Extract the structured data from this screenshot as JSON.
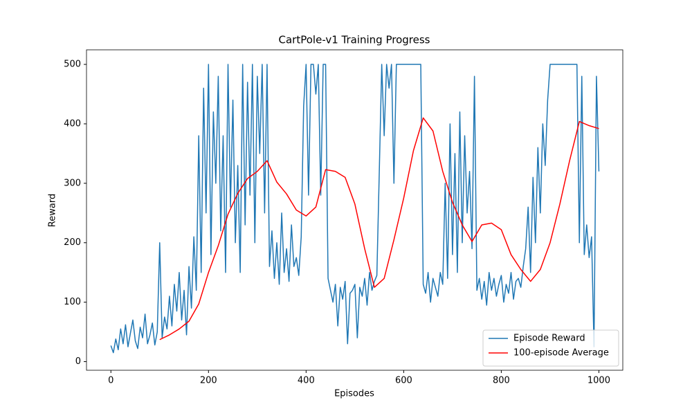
{
  "chart_data": {
    "type": "line",
    "title": "CartPole-v1 Training Progress",
    "x_label": "Episodes",
    "y_label": "Reward",
    "xlim": [
      -50,
      1049
    ],
    "ylim": [
      -14.5,
      524.5
    ],
    "xticks": [
      0,
      200,
      400,
      600,
      800,
      1000
    ],
    "yticks": [
      0,
      100,
      200,
      300,
      400,
      500
    ],
    "legend": "lower right",
    "series": [
      {
        "name": "Episode Reward",
        "color": "#1f77b4",
        "x": [
          0,
          5,
          10,
          15,
          20,
          25,
          30,
          35,
          40,
          45,
          50,
          55,
          60,
          65,
          70,
          75,
          80,
          85,
          90,
          95,
          100,
          105,
          110,
          115,
          120,
          125,
          130,
          135,
          140,
          145,
          150,
          155,
          160,
          165,
          170,
          175,
          180,
          185,
          190,
          195,
          200,
          205,
          210,
          215,
          220,
          225,
          230,
          235,
          240,
          245,
          250,
          255,
          260,
          265,
          270,
          275,
          280,
          285,
          290,
          295,
          300,
          305,
          310,
          315,
          320,
          325,
          330,
          335,
          340,
          345,
          350,
          355,
          360,
          365,
          370,
          375,
          380,
          385,
          390,
          395,
          400,
          405,
          410,
          415,
          420,
          425,
          430,
          435,
          440,
          445,
          450,
          455,
          460,
          465,
          470,
          475,
          480,
          485,
          490,
          495,
          500,
          505,
          510,
          515,
          520,
          525,
          530,
          535,
          540,
          545,
          550,
          555,
          560,
          565,
          570,
          575,
          580,
          585,
          590,
          595,
          600,
          605,
          610,
          615,
          620,
          625,
          630,
          635,
          640,
          645,
          650,
          655,
          660,
          665,
          670,
          675,
          680,
          685,
          690,
          695,
          700,
          705,
          710,
          715,
          720,
          725,
          730,
          735,
          740,
          745,
          750,
          755,
          760,
          765,
          770,
          775,
          780,
          785,
          790,
          795,
          800,
          805,
          810,
          815,
          820,
          825,
          830,
          835,
          840,
          845,
          850,
          855,
          860,
          865,
          870,
          875,
          880,
          885,
          890,
          895,
          900,
          905,
          910,
          915,
          920,
          925,
          930,
          935,
          940,
          945,
          950,
          955,
          960,
          965,
          970,
          975,
          980,
          985,
          990,
          995,
          1000
        ],
        "values": [
          27,
          15,
          38,
          20,
          55,
          30,
          62,
          25,
          48,
          70,
          35,
          22,
          58,
          40,
          80,
          30,
          45,
          65,
          28,
          50,
          200,
          40,
          75,
          55,
          110,
          60,
          130,
          85,
          150,
          70,
          120,
          45,
          160,
          90,
          210,
          120,
          380,
          150,
          460,
          250,
          500,
          180,
          420,
          300,
          480,
          220,
          380,
          150,
          500,
          260,
          440,
          200,
          330,
          150,
          500,
          230,
          470,
          280,
          500,
          200,
          480,
          350,
          500,
          250,
          500,
          160,
          220,
          140,
          200,
          130,
          250,
          150,
          190,
          135,
          230,
          160,
          175,
          145,
          210,
          430,
          500,
          280,
          500,
          500,
          450,
          500,
          280,
          500,
          500,
          140,
          120,
          100,
          130,
          60,
          125,
          105,
          135,
          30,
          115,
          120,
          130,
          40,
          125,
          110,
          140,
          95,
          150,
          120,
          135,
          145,
          320,
          500,
          380,
          500,
          460,
          500,
          300,
          500,
          500,
          500,
          500,
          500,
          500,
          500,
          500,
          500,
          500,
          500,
          130,
          115,
          150,
          100,
          140,
          125,
          110,
          150,
          130,
          300,
          140,
          400,
          180,
          350,
          150,
          420,
          200,
          380,
          250,
          320,
          190,
          480,
          120,
          140,
          105,
          135,
          95,
          150,
          120,
          140,
          110,
          130,
          145,
          100,
          130,
          115,
          150,
          105,
          135,
          140,
          125,
          160,
          190,
          260,
          150,
          310,
          200,
          360,
          250,
          400,
          330,
          440,
          500,
          500,
          500,
          500,
          500,
          500,
          500,
          500,
          500,
          500,
          500,
          500,
          200,
          480,
          180,
          230,
          175,
          210,
          25,
          480,
          320
        ]
      },
      {
        "name": "100-episode Average",
        "color": "#ff0000",
        "x": [
          100,
          120,
          140,
          160,
          180,
          200,
          220,
          240,
          260,
          280,
          300,
          320,
          340,
          360,
          380,
          400,
          420,
          440,
          460,
          480,
          500,
          520,
          540,
          560,
          580,
          600,
          620,
          640,
          660,
          680,
          700,
          720,
          740,
          760,
          780,
          800,
          820,
          840,
          860,
          880,
          900,
          920,
          940,
          960,
          980,
          1000
        ],
        "values": [
          37,
          45,
          55,
          68,
          97,
          150,
          195,
          248,
          283,
          308,
          320,
          338,
          302,
          282,
          255,
          245,
          260,
          323,
          320,
          310,
          265,
          190,
          125,
          140,
          205,
          275,
          355,
          410,
          388,
          320,
          268,
          230,
          202,
          230,
          233,
          222,
          180,
          155,
          135,
          155,
          200,
          265,
          338,
          404,
          397,
          392
        ]
      }
    ]
  }
}
